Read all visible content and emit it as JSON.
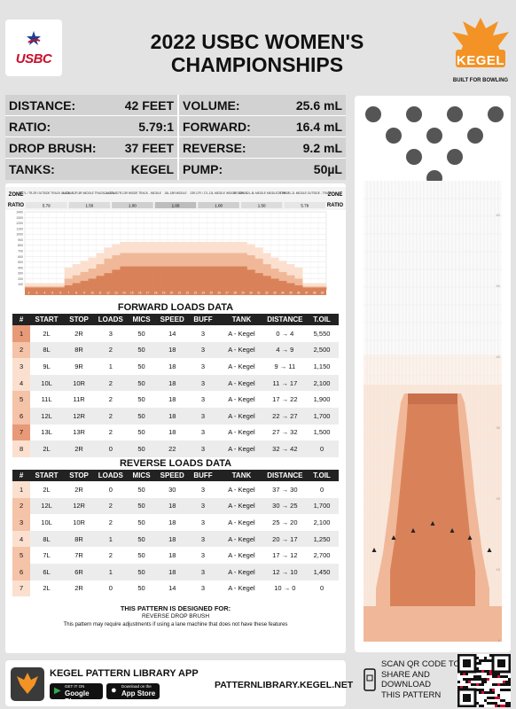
{
  "header": {
    "usbc_logo_text": "USBC",
    "title_line1": "2022 USBC WOMEN'S",
    "title_line2": "CHAMPIONSHIPS",
    "kegel_logo_text": "KEGEL",
    "kegel_tagline": "BUILT FOR BOWLING"
  },
  "specs": {
    "distance_label": "DISTANCE:",
    "distance_value": "42 FEET",
    "ratio_label": "RATIO:",
    "ratio_value": "5.79:1",
    "drop_brush_label": "DROP BRUSH:",
    "drop_brush_value": "37 FEET",
    "tanks_label": "TANKS:",
    "tanks_value": "KEGEL",
    "volume_label": "VOLUME:",
    "volume_value": "25.6 mL",
    "forward_label": "FORWARD:",
    "forward_value": "16.4 mL",
    "reverse_label": "REVERSE:",
    "reverse_value": "9.2 mL",
    "pump_label": "PUMP:",
    "pump_value": "50µL"
  },
  "chart_data": {
    "type": "area",
    "zone_label": "ZONE",
    "ratio_label": "RATIO",
    "zones": [
      {
        "name": "2L-7L / 7R-2R OUTSIDE TRACK - MIDDLE",
        "ratio": "5.79"
      },
      {
        "name": "8L-12L / 12R-8R MIDDLE TRACK - MIDDLE",
        "ratio": "1.50"
      },
      {
        "name": "13L-17L / 17R-13R INSIDE TRACK - MIDDLE",
        "ratio": "1.00"
      },
      {
        "name": "18L-18R MIDDLE",
        "ratio": "1.00"
      },
      {
        "name": "13R-17R / 17L-13L MIDDLE INSIDE - TRACK",
        "ratio": "1.00"
      },
      {
        "name": "8R-12R / 12L-8L MIDDLE MIDDLE - TRACK",
        "ratio": "1.50"
      },
      {
        "name": "2R-7R / 7L-2L MIDDLE OUTSIDE - TRACK",
        "ratio": "5.79"
      }
    ],
    "y_ticks": [
      "1400",
      "1300",
      "1200",
      "1100",
      "1000",
      "900",
      "800",
      "700",
      "600",
      "500",
      "400",
      "300",
      "200",
      "100"
    ],
    "boards": [
      2,
      3,
      4,
      5,
      6,
      7,
      8,
      9,
      10,
      11,
      12,
      13,
      14,
      15,
      16,
      17,
      18,
      19,
      20,
      21,
      22,
      23,
      24,
      25,
      26,
      27,
      28,
      29,
      30,
      31,
      32,
      33,
      34,
      35,
      36,
      37,
      38,
      39
    ],
    "series": [
      {
        "name": "total",
        "values": [
          120,
          120,
          120,
          120,
          120,
          400,
          460,
          520,
          580,
          660,
          760,
          820,
          860,
          860,
          860,
          860,
          860,
          860,
          860,
          860,
          860,
          860,
          860,
          860,
          860,
          860,
          860,
          860,
          820,
          760,
          660,
          580,
          520,
          460,
          400,
          120,
          120,
          120
        ]
      },
      {
        "name": "mid",
        "values": [
          60,
          60,
          60,
          60,
          60,
          200,
          260,
          320,
          380,
          460,
          560,
          620,
          660,
          660,
          660,
          660,
          660,
          660,
          660,
          660,
          660,
          660,
          660,
          660,
          660,
          660,
          660,
          660,
          620,
          560,
          460,
          380,
          320,
          260,
          200,
          60,
          60,
          60
        ]
      },
      {
        "name": "base",
        "values": [
          40,
          40,
          40,
          40,
          40,
          80,
          120,
          160,
          200,
          250,
          300,
          360,
          420,
          420,
          420,
          420,
          420,
          420,
          420,
          420,
          420,
          420,
          420,
          420,
          420,
          420,
          420,
          420,
          360,
          300,
          250,
          200,
          160,
          120,
          80,
          40,
          40,
          40
        ]
      }
    ],
    "ylim": [
      0,
      1400
    ]
  },
  "forward": {
    "title": "FORWARD LOADS DATA",
    "headers": [
      "#",
      "START",
      "STOP",
      "LOADS",
      "MICS",
      "SPEED",
      "BUFF",
      "TANK",
      "DISTANCE",
      "T.OIL"
    ],
    "rows": [
      [
        "1",
        "2L",
        "2R",
        "3",
        "50",
        "14",
        "3",
        "A - Kegel",
        "0 → 4",
        "5,550"
      ],
      [
        "2",
        "8L",
        "8R",
        "2",
        "50",
        "18",
        "3",
        "A - Kegel",
        "4 → 9",
        "2,500"
      ],
      [
        "3",
        "9L",
        "9R",
        "1",
        "50",
        "18",
        "3",
        "A - Kegel",
        "9 → 11",
        "1,150"
      ],
      [
        "4",
        "10L",
        "10R",
        "2",
        "50",
        "18",
        "3",
        "A - Kegel",
        "11 → 17",
        "2,100"
      ],
      [
        "5",
        "11L",
        "11R",
        "2",
        "50",
        "18",
        "3",
        "A - Kegel",
        "17 → 22",
        "1,900"
      ],
      [
        "6",
        "12L",
        "12R",
        "2",
        "50",
        "18",
        "3",
        "A - Kegel",
        "22 → 27",
        "1,700"
      ],
      [
        "7",
        "13L",
        "13R",
        "2",
        "50",
        "18",
        "3",
        "A - Kegel",
        "27 → 32",
        "1,500"
      ],
      [
        "8",
        "2L",
        "2R",
        "0",
        "50",
        "22",
        "3",
        "A - Kegel",
        "32 → 42",
        "0"
      ]
    ]
  },
  "reverse": {
    "title": "REVERSE LOADS DATA",
    "headers": [
      "#",
      "START",
      "STOP",
      "LOADS",
      "MICS",
      "SPEED",
      "BUFF",
      "TANK",
      "DISTANCE",
      "T.OIL"
    ],
    "rows": [
      [
        "1",
        "2L",
        "2R",
        "0",
        "50",
        "30",
        "3",
        "A - Kegel",
        "37 → 30",
        "0"
      ],
      [
        "2",
        "12L",
        "12R",
        "2",
        "50",
        "18",
        "3",
        "A - Kegel",
        "30 → 25",
        "1,700"
      ],
      [
        "3",
        "10L",
        "10R",
        "2",
        "50",
        "18",
        "3",
        "A - Kegel",
        "25 → 20",
        "2,100"
      ],
      [
        "4",
        "8L",
        "8R",
        "1",
        "50",
        "18",
        "3",
        "A - Kegel",
        "20 → 17",
        "1,250"
      ],
      [
        "5",
        "7L",
        "7R",
        "2",
        "50",
        "18",
        "3",
        "A - Kegel",
        "17 → 12",
        "2,700"
      ],
      [
        "6",
        "6L",
        "6R",
        "1",
        "50",
        "18",
        "3",
        "A - Kegel",
        "12 → 10",
        "1,450"
      ],
      [
        "7",
        "2L",
        "2R",
        "0",
        "50",
        "14",
        "3",
        "A - Kegel",
        "10 → 0",
        "0"
      ]
    ]
  },
  "design_note": {
    "title": "THIS PATTERN IS DESIGNED FOR:",
    "subtitle": "REVERSE DROP BRUSH",
    "text": "This pattern may require adjustments if using a lane machine that does not have these features"
  },
  "lane": {
    "distance_ticks": [
      "60",
      "50",
      "40",
      "30",
      "20",
      "10",
      "0"
    ]
  },
  "footer": {
    "app_title": "KEGEL PATTERN LIBRARY APP",
    "google_small": "GET IT ON",
    "google_label": "Google Play",
    "apple_small": "Download on the",
    "apple_label": "App Store",
    "url": "PATTERNLIBRARY.KEGEL.NET",
    "qr_line1": "SCAN QR CODE TO",
    "qr_line2": "SHARE AND",
    "qr_line3": "DOWNLOAD",
    "qr_line4": "THIS PATTERN"
  },
  "colors": {
    "oil_dark": "#d9825a",
    "oil_mid": "#f0b898",
    "oil_light": "#fbe0cf",
    "usbc_red": "#c8102e",
    "usbc_blue": "#1d3f8f",
    "kegel_orange": "#f39325"
  }
}
